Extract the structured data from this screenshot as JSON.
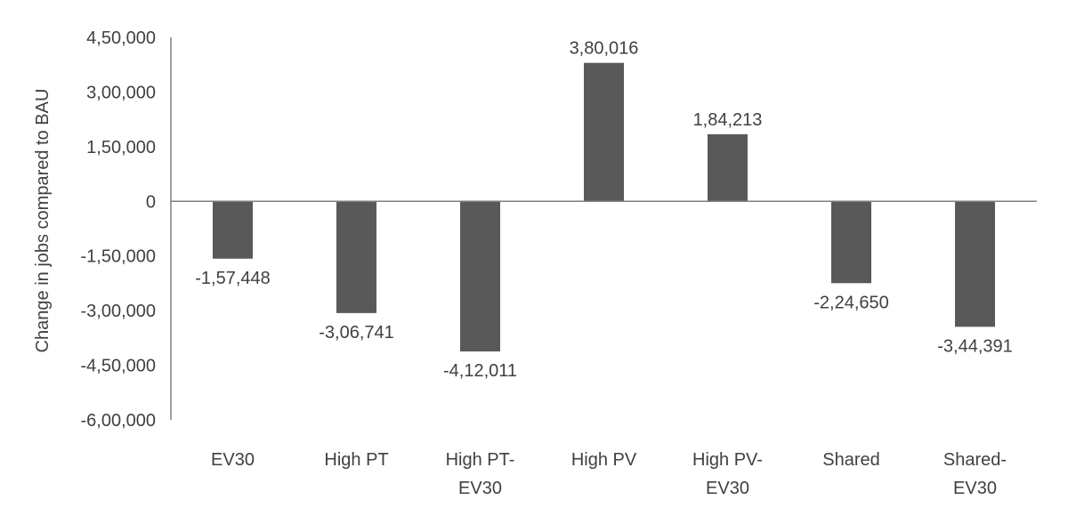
{
  "chart_data": {
    "type": "bar",
    "title": "",
    "xlabel": "",
    "ylabel": "Change in jobs compared to BAU",
    "ylim": [
      -600000,
      450000
    ],
    "grid": false,
    "bar_color": "#595959",
    "categories": [
      [
        "EV30"
      ],
      [
        "High PT"
      ],
      [
        "High PT-",
        "EV30"
      ],
      [
        "High PV"
      ],
      [
        "High PV-",
        "EV30"
      ],
      [
        "Shared"
      ],
      [
        "Shared-",
        "EV30"
      ]
    ],
    "values": [
      -157448,
      -306741,
      -412011,
      380016,
      184213,
      -224650,
      -344391
    ],
    "data_labels": [
      "-1,57,448",
      "-3,06,741",
      "-4,12,011",
      "3,80,016",
      "1,84,213",
      "-2,24,650",
      "-3,44,391"
    ],
    "y_ticks": [
      {
        "value": 450000,
        "label": "4,50,000"
      },
      {
        "value": 300000,
        "label": "3,00,000"
      },
      {
        "value": 150000,
        "label": "1,50,000"
      },
      {
        "value": 0,
        "label": "0"
      },
      {
        "value": -150000,
        "label": "-1,50,000"
      },
      {
        "value": -300000,
        "label": "-3,00,000"
      },
      {
        "value": -450000,
        "label": "-4,50,000"
      },
      {
        "value": -600000,
        "label": "-6,00,000"
      }
    ]
  }
}
